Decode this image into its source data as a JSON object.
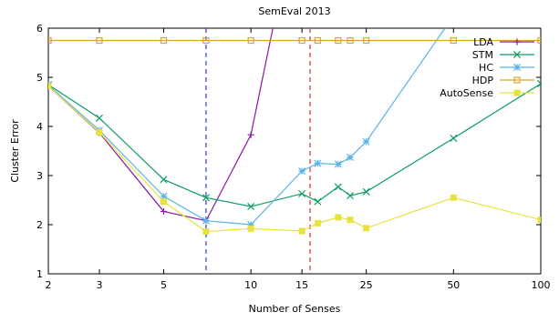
{
  "chart_data": {
    "type": "line",
    "title": "SemEval 2013",
    "xlabel": "Number of Senses",
    "ylabel": "Cluster Error",
    "x_scale": "log",
    "xlim": [
      2,
      100
    ],
    "ylim": [
      1,
      6
    ],
    "x_ticks": [
      2,
      3,
      5,
      10,
      15,
      25,
      50,
      100
    ],
    "y_ticks": [
      1,
      2,
      3,
      4,
      5,
      6
    ],
    "grid": false,
    "legend_position": "top-right",
    "vertical_lines": [
      {
        "x": 7,
        "color": "#2a3cdb",
        "style": "dashed"
      },
      {
        "x": 16,
        "color": "#e03030",
        "style": "dashed"
      }
    ],
    "series": [
      {
        "name": "LDA",
        "color": "#8b1a9e",
        "marker": "plus",
        "x": [
          2,
          3,
          5,
          7,
          10,
          12
        ],
        "y": [
          4.82,
          3.87,
          2.27,
          2.08,
          3.83,
          6.1
        ]
      },
      {
        "name": "STM",
        "color": "#0e9e63",
        "marker": "x",
        "x": [
          2,
          3,
          5,
          7,
          10,
          15,
          17,
          20,
          22,
          25,
          50,
          100
        ],
        "y": [
          4.85,
          4.17,
          2.92,
          2.55,
          2.37,
          2.63,
          2.47,
          2.77,
          2.59,
          2.67,
          3.76,
          4.87
        ]
      },
      {
        "name": "HC",
        "color": "#5ab3e6",
        "marker": "star",
        "x": [
          2,
          3,
          5,
          7,
          10,
          15,
          17,
          20,
          22,
          25,
          48
        ],
        "y": [
          4.84,
          3.92,
          2.58,
          2.08,
          2.0,
          3.09,
          3.25,
          3.23,
          3.37,
          3.69,
          6.1
        ]
      },
      {
        "name": "HDP",
        "color": "#e0a22b",
        "marker": "open-square",
        "x": [
          2,
          3,
          5,
          7,
          10,
          15,
          17,
          20,
          22,
          25,
          50,
          100
        ],
        "y": [
          5.75,
          5.75,
          5.75,
          5.75,
          5.75,
          5.75,
          5.75,
          5.75,
          5.75,
          5.75,
          5.75,
          5.75
        ]
      },
      {
        "name": "AutoSense",
        "color": "#e8e33c",
        "marker": "filled-square",
        "x": [
          2,
          3,
          5,
          7,
          10,
          15,
          17,
          20,
          22,
          25,
          50,
          100
        ],
        "y": [
          4.82,
          3.88,
          2.47,
          1.86,
          1.92,
          1.87,
          2.03,
          2.15,
          2.1,
          1.93,
          2.55,
          2.1
        ]
      }
    ]
  }
}
